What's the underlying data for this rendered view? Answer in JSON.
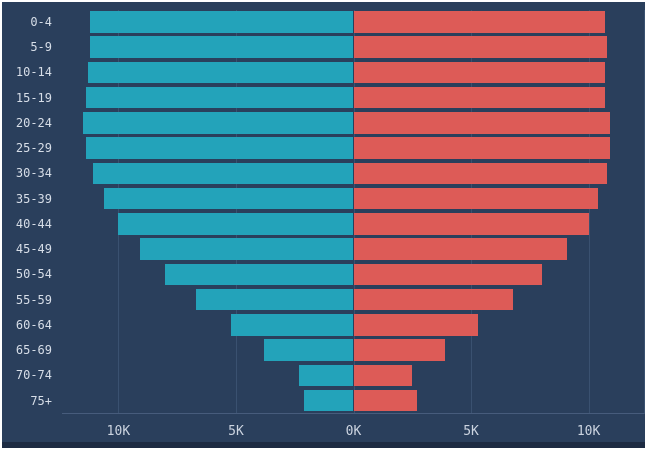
{
  "theme": {
    "background": "#2a3f5c",
    "bar_left_color": "#23a3ba",
    "bar_right_color": "#dd5b57",
    "grid_color": "#3a5170",
    "axis_color": "#475c7c",
    "text_color": "#d7dee8",
    "footer_strip_color": "#1d2b42",
    "frame_color": "#ffffff"
  },
  "chart_data": {
    "type": "bar",
    "variant": "population-pyramid",
    "orientation": "horizontal",
    "title": "",
    "xlabel": "",
    "ylabel": "",
    "unit": "K",
    "grid": true,
    "legend": false,
    "categories": [
      "0-4",
      "5-9",
      "10-14",
      "15-19",
      "20-24",
      "25-29",
      "30-34",
      "35-39",
      "40-44",
      "45-49",
      "50-54",
      "55-59",
      "60-64",
      "65-69",
      "70-74",
      "75+"
    ],
    "series": [
      {
        "name": "left",
        "color": "#23a3ba",
        "values": [
          11.2,
          11.2,
          11.3,
          11.4,
          11.5,
          11.4,
          11.1,
          10.6,
          10.0,
          9.1,
          8.0,
          6.7,
          5.2,
          3.8,
          2.3,
          2.1
        ]
      },
      {
        "name": "right",
        "color": "#dd5b57",
        "values": [
          10.7,
          10.8,
          10.7,
          10.7,
          10.9,
          10.9,
          10.8,
          10.4,
          10.0,
          9.1,
          8.0,
          6.8,
          5.3,
          3.9,
          2.5,
          2.7
        ]
      }
    ],
    "x_ticks": [
      {
        "value": -10,
        "label": "10K"
      },
      {
        "value": -5,
        "label": "5K"
      },
      {
        "value": 0,
        "label": "0K"
      },
      {
        "value": 5,
        "label": "5K"
      },
      {
        "value": 10,
        "label": "10K"
      }
    ],
    "xlim": [
      -12.4,
      12.4
    ]
  }
}
